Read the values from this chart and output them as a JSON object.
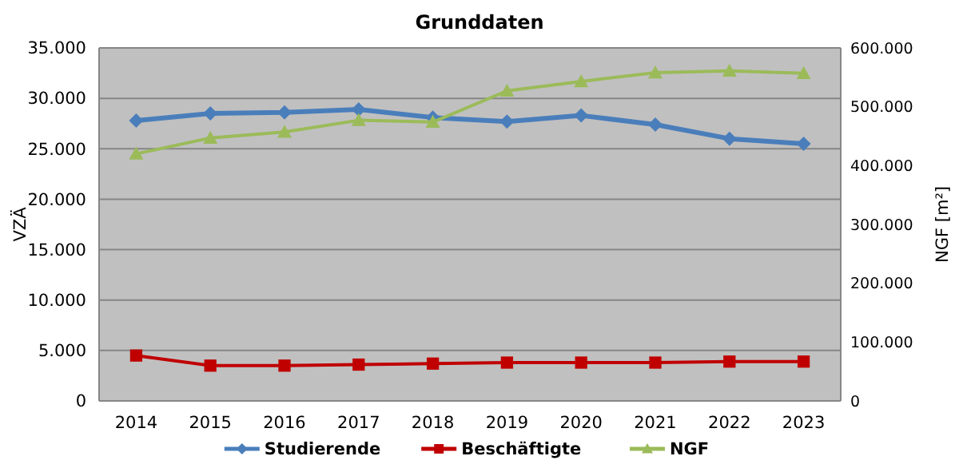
{
  "chart_data": {
    "type": "line",
    "title": "Grunddaten",
    "ylabel": "VZÄ",
    "y2label": "NGF [m²]",
    "categories": [
      "2014",
      "2015",
      "2016",
      "2017",
      "2018",
      "2019",
      "2020",
      "2021",
      "2022",
      "2023"
    ],
    "series": [
      {
        "name": "Studierende",
        "color": "#4a7ebb",
        "marker": "diamond",
        "values": [
          27800,
          28500,
          28600,
          28900,
          28100,
          27700,
          28300,
          27400,
          26000,
          25500
        ]
      },
      {
        "name": "Beschäftigte",
        "color": "#c00000",
        "marker": "square",
        "values": [
          4500,
          3500,
          3500,
          3600,
          3700,
          3800,
          3800,
          3800,
          3900,
          3900
        ]
      },
      {
        "name": "NGF",
        "color": "#9bbb59",
        "marker": "triangle",
        "axis": "y2",
        "values": [
          420000,
          447000,
          457000,
          477000,
          474000,
          527000,
          543000,
          558000,
          561000,
          557000
        ]
      }
    ],
    "ylim": [
      0,
      35000
    ],
    "yticks": [
      0,
      {
        "value": 5000,
        "label": "5.000"
      },
      {
        "value": 10000,
        "label": "10.000"
      },
      {
        "value": 15000,
        "label": "15.000"
      },
      {
        "value": 20000,
        "label": "20.000"
      },
      {
        "value": 25000,
        "label": "25.000"
      },
      {
        "value": 30000,
        "label": "30.000"
      },
      {
        "value": 35000,
        "label": "35.000"
      }
    ],
    "y2lim": [
      0,
      600000
    ],
    "y2ticks": [
      0,
      {
        "value": 100000,
        "label": "100.000"
      },
      {
        "value": 200000,
        "label": "200.000"
      },
      {
        "value": 300000,
        "label": "300.000"
      },
      {
        "value": 400000,
        "label": "400.000"
      },
      {
        "value": 500000,
        "label": "500.000"
      },
      {
        "value": 600000,
        "label": "600.000"
      }
    ],
    "grid": "y",
    "legend": "bottom"
  }
}
